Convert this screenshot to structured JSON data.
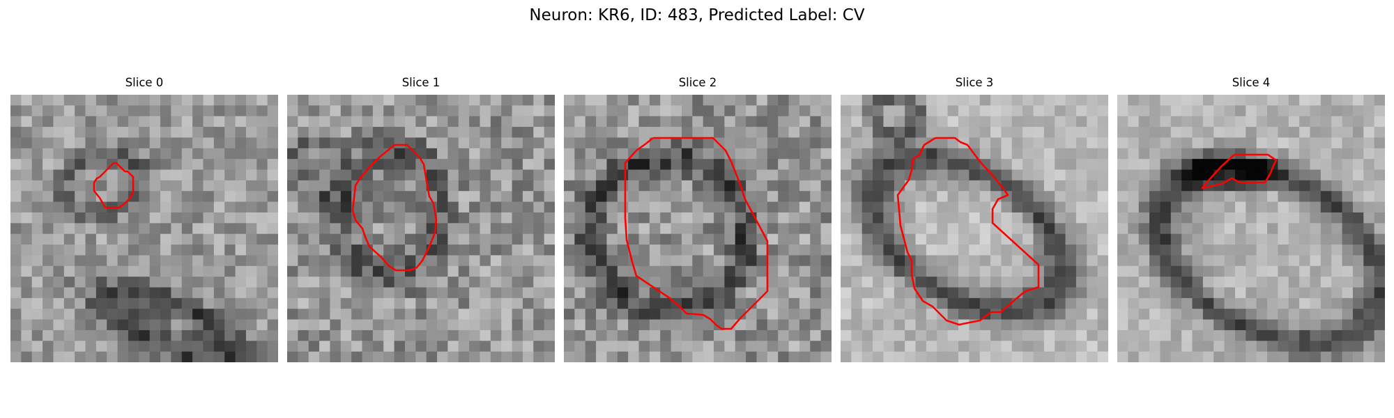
{
  "figure": {
    "title": "Neuron: KR6, ID: 483, Predicted Label: CV",
    "contour_color": "#ff0000"
  },
  "slices": [
    {
      "title": "Slice 0"
    },
    {
      "title": "Slice 1"
    },
    {
      "title": "Slice 2"
    },
    {
      "title": "Slice 3"
    },
    {
      "title": "Slice 4"
    }
  ]
}
